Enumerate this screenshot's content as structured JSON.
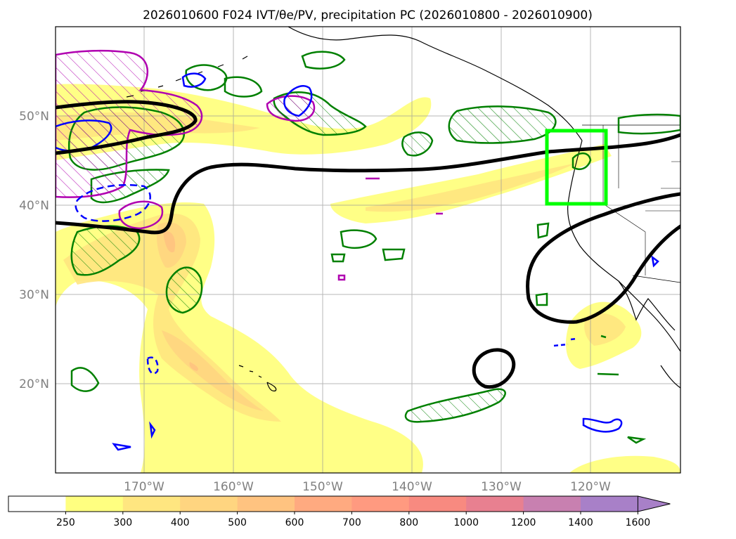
{
  "title": "2026010600 F024 IVT/θe/PV, precipitation PC (2026010800 - 2026010900)",
  "map": {
    "lat_labels": [
      "50°N",
      "40°N",
      "30°N",
      "20°N"
    ],
    "lon_labels": [
      "170°W",
      "160°W",
      "150°W",
      "140°W",
      "130°W",
      "120°W"
    ],
    "extent": {
      "lon_min": -180,
      "lon_max": -110,
      "lat_min": 10,
      "lat_max": 60
    },
    "region_box": {
      "lon_min": -125,
      "lon_max": -118,
      "lat_min": 40,
      "lat_max": 48.5,
      "color": "#00ff00"
    },
    "contour_colors": {
      "pv_hatched": "#008000",
      "theta_e": "#000000",
      "pv_magenta": "#b000b0",
      "pv_blue": "#0000ff"
    }
  },
  "colorbar": {
    "levels": [
      "250",
      "300",
      "400",
      "500",
      "600",
      "700",
      "800",
      "1000",
      "1200",
      "1400",
      "1600"
    ],
    "colors": [
      "#ffffff",
      "#ffff80",
      "#ffe680",
      "#ffd580",
      "#ffc380",
      "#ffaa80",
      "#ff9a80",
      "#f88a80",
      "#e88090",
      "#c880b0",
      "#a880c8"
    ],
    "extend": "max"
  }
}
